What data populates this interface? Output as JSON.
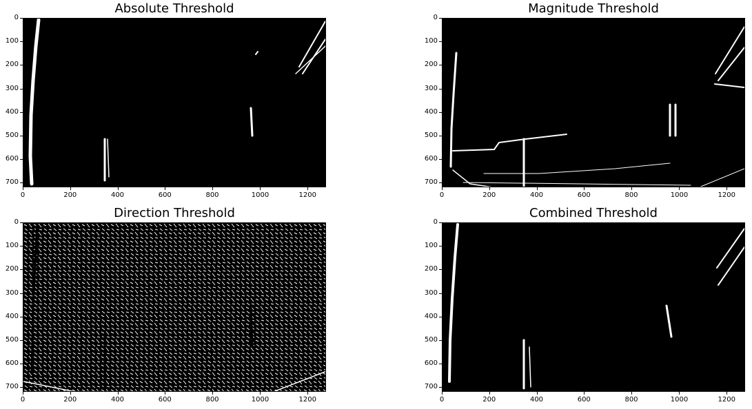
{
  "figure": {
    "panels": [
      {
        "id": "absolute",
        "title": "Absolute Threshold"
      },
      {
        "id": "magnitude",
        "title": "Magnitude Threshold"
      },
      {
        "id": "direction",
        "title": "Direction Threshold"
      },
      {
        "id": "combined",
        "title": "Combined Threshold"
      }
    ],
    "x_ticks": [
      "0",
      "200",
      "400",
      "600",
      "800",
      "1000",
      "1200"
    ],
    "y_ticks": [
      "0",
      "100",
      "200",
      "300",
      "400",
      "500",
      "600",
      "700"
    ],
    "colors": {
      "background": "#000000",
      "foreground": "#ffffff",
      "page": "#ffffff"
    }
  },
  "chart_data": [
    {
      "type": "heatmap",
      "title": "Absolute Threshold",
      "xlim": [
        0,
        1280
      ],
      "ylim": [
        720,
        0
      ],
      "x_ticks": [
        0,
        200,
        400,
        600,
        800,
        1000,
        1200
      ],
      "y_ticks": [
        0,
        100,
        200,
        300,
        400,
        500,
        600,
        700
      ],
      "colormap": "binary"
    },
    {
      "type": "heatmap",
      "title": "Magnitude Threshold",
      "xlim": [
        0,
        1280
      ],
      "ylim": [
        720,
        0
      ],
      "x_ticks": [
        0,
        200,
        400,
        600,
        800,
        1000,
        1200
      ],
      "y_ticks": [
        0,
        100,
        200,
        300,
        400,
        500,
        600,
        700
      ],
      "colormap": "binary"
    },
    {
      "type": "heatmap",
      "title": "Direction Threshold",
      "xlim": [
        0,
        1280
      ],
      "ylim": [
        720,
        0
      ],
      "x_ticks": [
        0,
        200,
        400,
        600,
        800,
        1000,
        1200
      ],
      "y_ticks": [
        0,
        100,
        200,
        300,
        400,
        500,
        600,
        700
      ],
      "colormap": "binary"
    },
    {
      "type": "heatmap",
      "title": "Combined Threshold",
      "xlim": [
        0,
        1280
      ],
      "ylim": [
        720,
        0
      ],
      "x_ticks": [
        0,
        200,
        400,
        600,
        800,
        1000,
        1200
      ],
      "y_ticks": [
        0,
        100,
        200,
        300,
        400,
        500,
        600,
        700
      ],
      "colormap": "binary"
    }
  ]
}
